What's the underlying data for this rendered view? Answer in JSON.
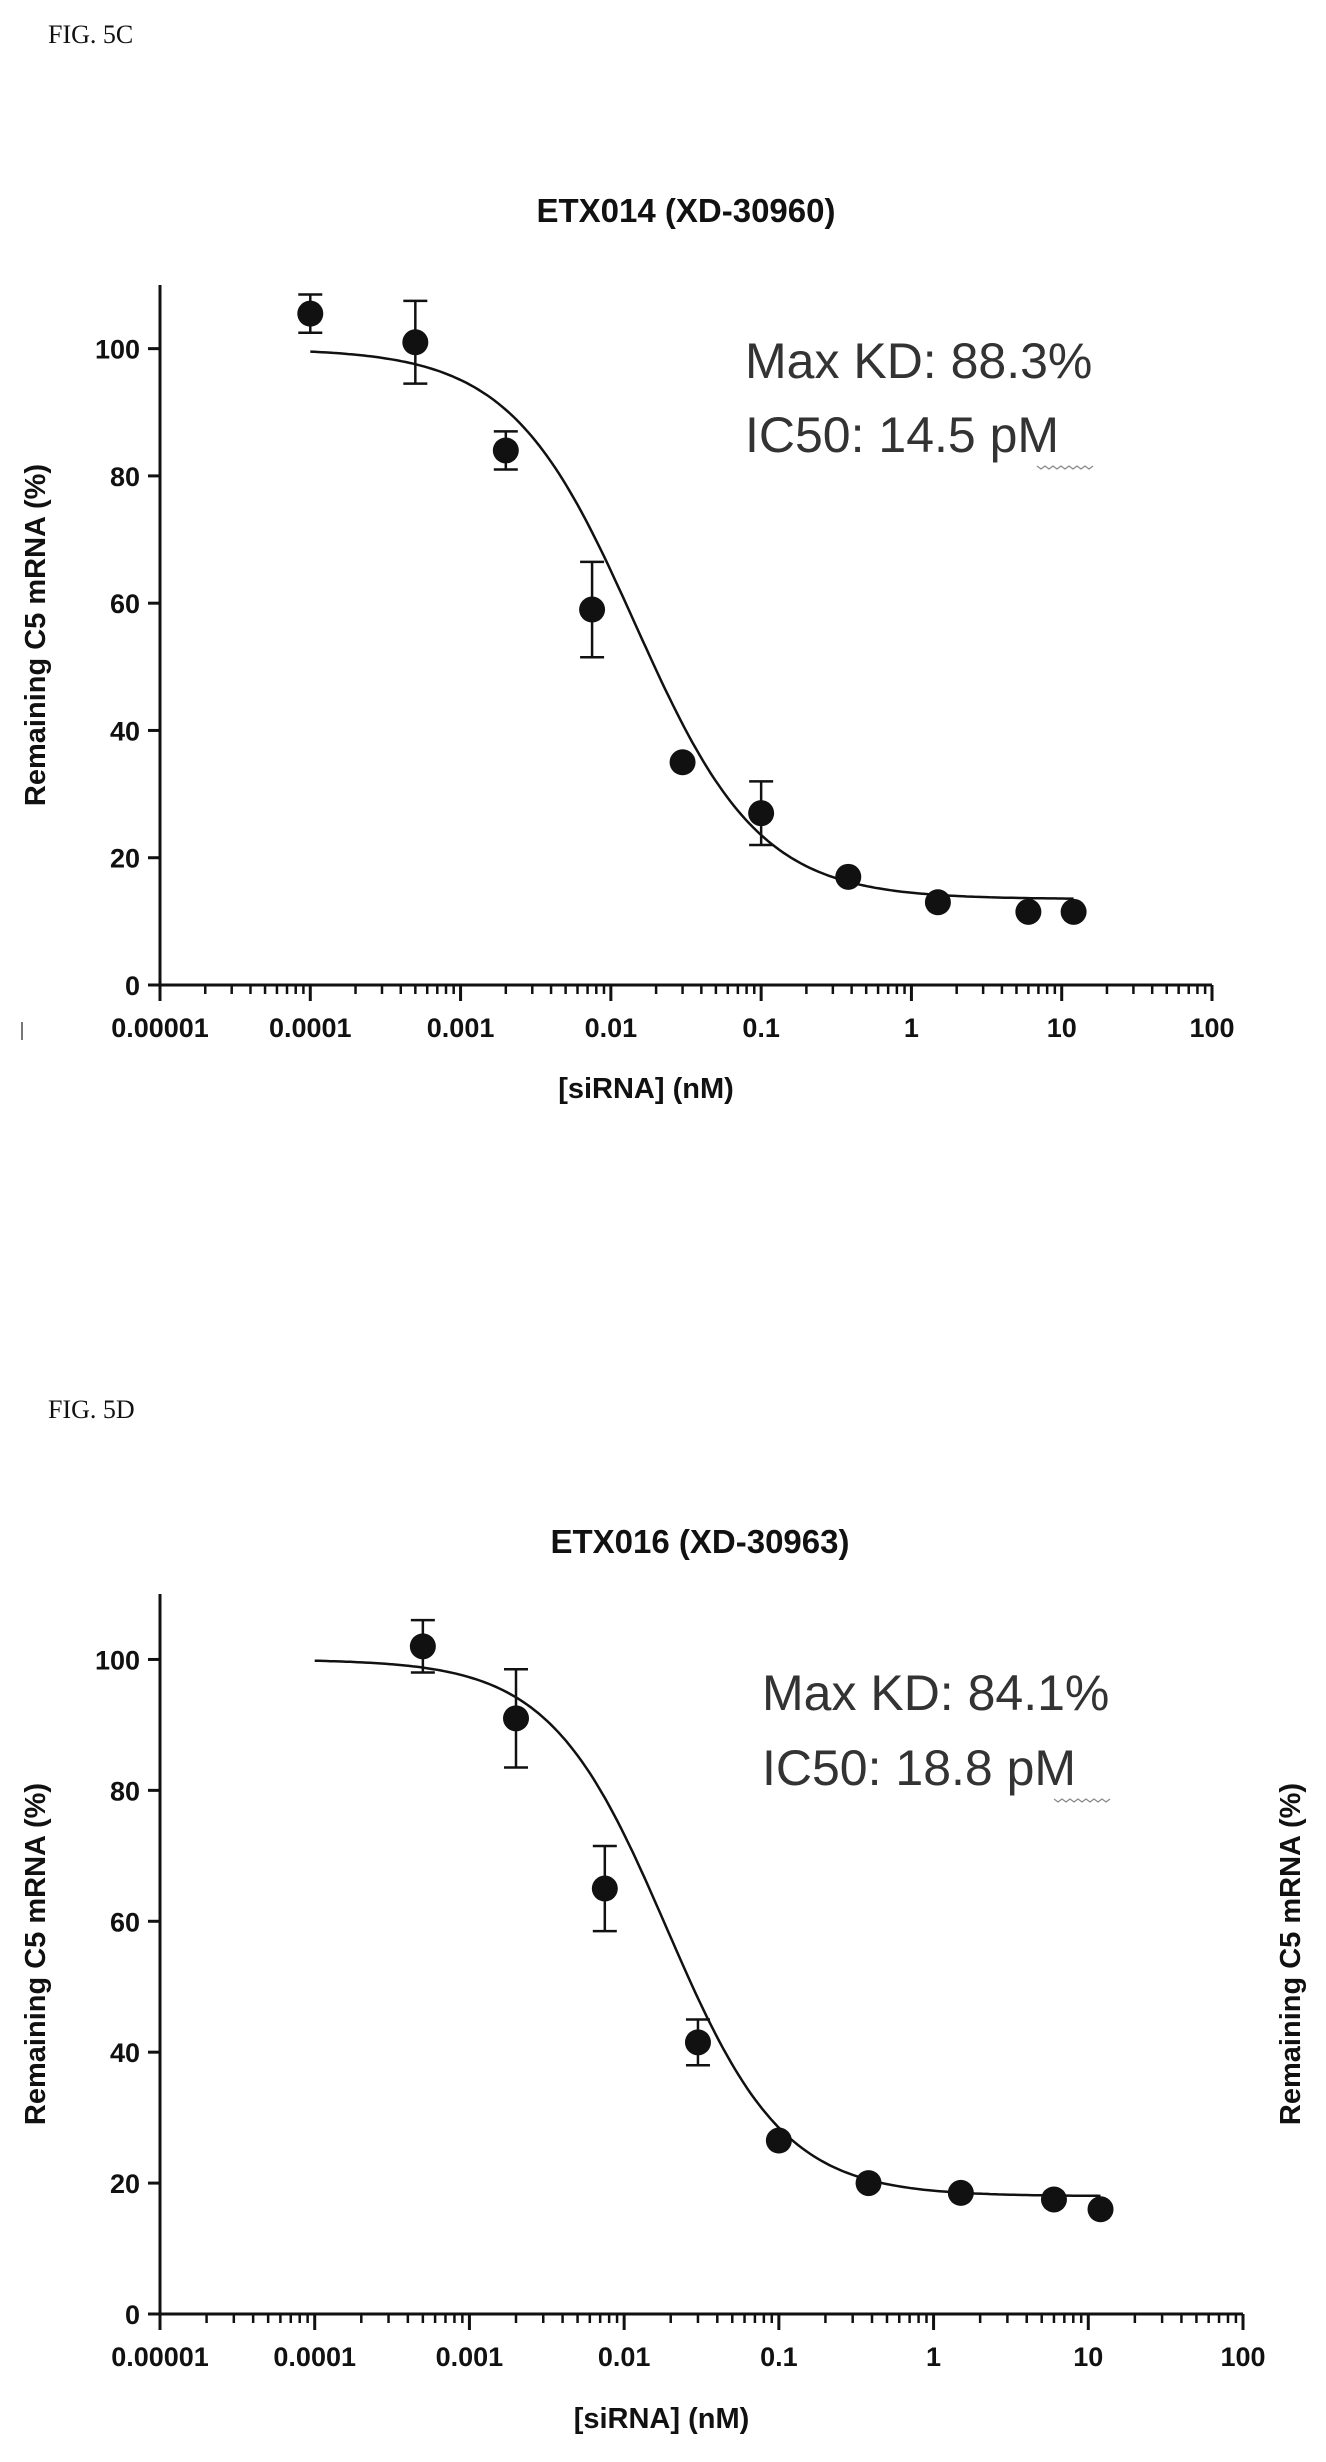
{
  "figures": [
    {
      "label": "FIG. 5C"
    },
    {
      "label": "FIG. 5D"
    }
  ],
  "chart_data": [
    {
      "type": "scatter",
      "title": "ETX014 (XD-30960)",
      "xlabel": "[siRNA] (nM)",
      "ylabel": "Remaining C5 mRNA (%)",
      "xscale": "log",
      "xlim": [
        1e-05,
        100
      ],
      "ylim": [
        0,
        110
      ],
      "xticks": [
        1e-05,
        0.0001,
        0.001,
        0.01,
        0.1,
        1,
        10,
        100
      ],
      "xtick_labels": [
        "0.00001",
        "0.0001",
        "0.001",
        "0.01",
        "0.1",
        "1",
        "10",
        "100"
      ],
      "yticks": [
        0,
        20,
        40,
        60,
        80,
        100
      ],
      "ytick_labels": [
        "0",
        "20",
        "40",
        "60",
        "80",
        "100"
      ],
      "annotations": [
        "Max KD: 88.3%",
        "IC50: 14.5 pM"
      ],
      "fit": {
        "type": "four-parameter-logistic",
        "top": 100,
        "bottom": 13.5,
        "ic50_nM": 0.0145,
        "hill": 1.05
      },
      "series": [
        {
          "x": [
            0.0001,
            0.0005,
            0.002,
            0.0075,
            0.03,
            0.1,
            0.38,
            1.5,
            6,
            12
          ],
          "y": [
            105.5,
            101,
            84,
            59,
            35,
            27,
            17,
            13,
            11.5,
            11.5
          ],
          "error": [
            3,
            6.5,
            3,
            7.5,
            0,
            5,
            0,
            0,
            0,
            0
          ]
        }
      ]
    },
    {
      "type": "scatter",
      "title": "ETX016 (XD-30963)",
      "xlabel": "[siRNA] (nM)",
      "ylabel": "Remaining C5 mRNA (%)",
      "ylabel_right": "Remaining C5 mRNA (%)",
      "xscale": "log",
      "xlim": [
        1e-05,
        100
      ],
      "ylim": [
        0,
        110
      ],
      "xticks": [
        1e-05,
        0.0001,
        0.001,
        0.01,
        0.1,
        1,
        10,
        100
      ],
      "xtick_labels": [
        "0.00001",
        "0.0001",
        "0.001",
        "0.01",
        "0.1",
        "1",
        "10",
        "100"
      ],
      "yticks": [
        0,
        20,
        40,
        60,
        80,
        100
      ],
      "ytick_labels": [
        "0",
        "20",
        "40",
        "60",
        "80",
        "100"
      ],
      "annotations": [
        "Max KD: 84.1%",
        "IC50: 18.8 pM"
      ],
      "fit": {
        "type": "four-parameter-logistic",
        "top": 100,
        "bottom": 18,
        "ic50_nM": 0.0188,
        "hill": 1.15
      },
      "series": [
        {
          "x": [
            0.0005,
            0.002,
            0.0075,
            0.03,
            0.1,
            0.38,
            1.5,
            6,
            12
          ],
          "y": [
            102,
            91,
            65,
            41.5,
            26.5,
            20,
            18.5,
            17.5,
            16
          ],
          "error": [
            4,
            7.5,
            6.5,
            3.5,
            0,
            0,
            0,
            0,
            0
          ]
        }
      ]
    }
  ]
}
